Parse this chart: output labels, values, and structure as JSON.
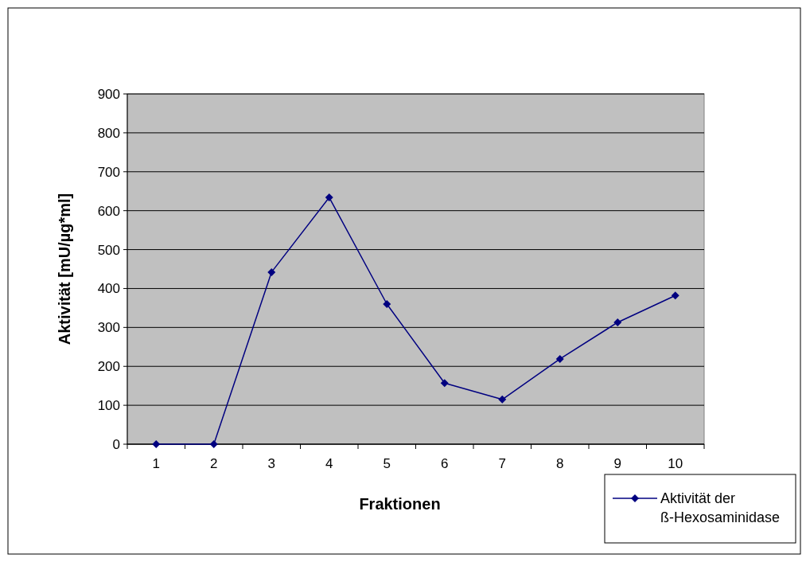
{
  "chart_data": {
    "type": "line",
    "xlabel": "Fraktionen",
    "ylabel": "Aktivität [mU/µg*ml]",
    "categories": [
      "1",
      "2",
      "3",
      "4",
      "5",
      "6",
      "7",
      "8",
      "9",
      "10"
    ],
    "series": [
      {
        "name": "Aktivität der ß-Hexosaminidase",
        "color": "#000080",
        "values": [
          0,
          0,
          442,
          634,
          360,
          157,
          115,
          219,
          313,
          382
        ]
      }
    ],
    "ylim": [
      0,
      900
    ],
    "yticks": [
      0,
      100,
      200,
      300,
      400,
      500,
      600,
      700,
      800,
      900
    ],
    "grid": "y",
    "legend": "bottom right",
    "marker": "diamond",
    "line_style": "solid"
  }
}
